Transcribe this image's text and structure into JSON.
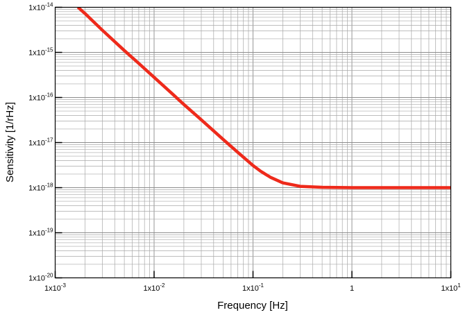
{
  "chart_data": {
    "type": "line",
    "title": "",
    "xlabel": "Frequency [Hz]",
    "ylabel": "Sensitivity [1/rHz]",
    "x_scale": "log",
    "y_scale": "log",
    "xlim": [
      0.001,
      10
    ],
    "ylim": [
      1e-20,
      1e-14
    ],
    "grid": true,
    "legend": "none",
    "x_ticks": [
      {
        "value": 0.001,
        "mantissa": "1x10",
        "exp": "-3"
      },
      {
        "value": 0.01,
        "mantissa": "1x10",
        "exp": "-2"
      },
      {
        "value": 0.1,
        "mantissa": "1x10",
        "exp": "-1"
      },
      {
        "value": 1,
        "mantissa": "1",
        "exp": ""
      },
      {
        "value": 10,
        "mantissa": "1x10",
        "exp": "1"
      }
    ],
    "y_ticks": [
      {
        "value": 1e-20,
        "mantissa": "1x10",
        "exp": "-20"
      },
      {
        "value": 1e-19,
        "mantissa": "1x10",
        "exp": "-19"
      },
      {
        "value": 1e-18,
        "mantissa": "1x10",
        "exp": "-18"
      },
      {
        "value": 1e-17,
        "mantissa": "1x10",
        "exp": "-17"
      },
      {
        "value": 1e-16,
        "mantissa": "1x10",
        "exp": "-16"
      },
      {
        "value": 1e-15,
        "mantissa": "1x10",
        "exp": "-15"
      },
      {
        "value": 1e-14,
        "mantissa": "1x10",
        "exp": "-14"
      }
    ],
    "series": [
      {
        "color": "#ee2a1b",
        "x": [
          0.0017,
          0.002,
          0.003,
          0.005,
          0.007,
          0.01,
          0.015,
          0.02,
          0.03,
          0.05,
          0.07,
          0.1,
          0.12,
          0.15,
          0.2,
          0.3,
          0.5,
          1,
          2,
          5,
          10
        ],
        "y": [
          1e-14,
          7.3e-15,
          3.1e-15,
          1.1e-15,
          5.7e-16,
          2.8e-16,
          1.25e-16,
          7e-17,
          3.2e-17,
          1.17e-17,
          6.1e-18,
          3.1e-18,
          2.3e-18,
          1.7e-18,
          1.28e-18,
          1.07e-18,
          1.02e-18,
          1e-18,
          1e-18,
          1e-18,
          1e-18
        ]
      }
    ]
  }
}
